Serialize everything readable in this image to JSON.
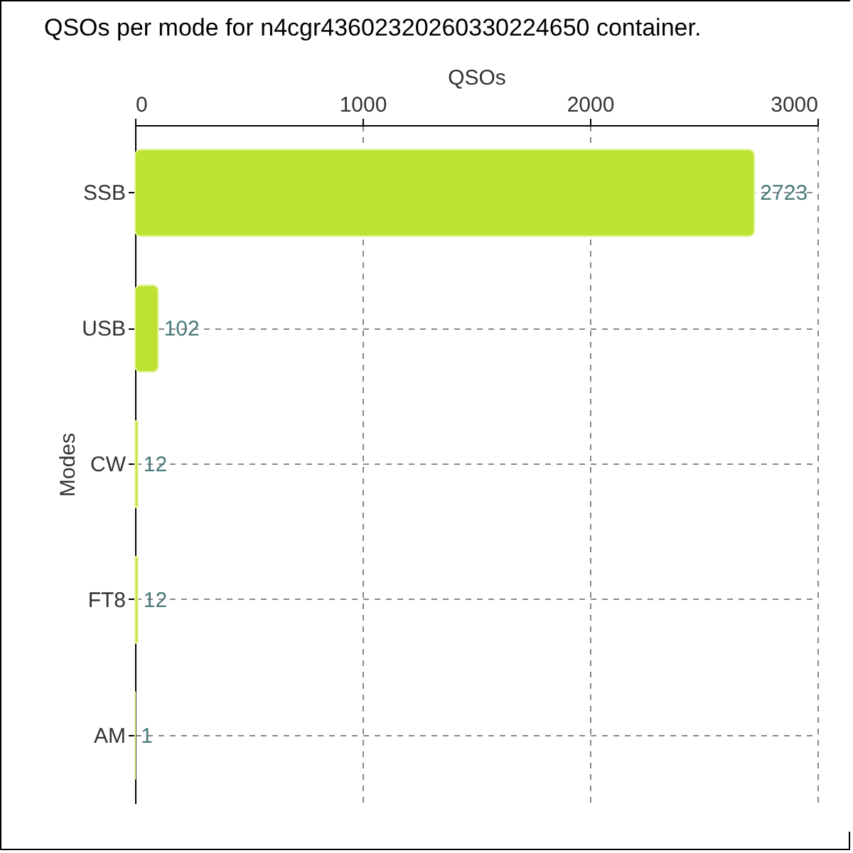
{
  "chart_data": {
    "type": "bar",
    "orientation": "horizontal",
    "title": "QSOs per mode for n4cgr43602320260330224650 container.",
    "xlabel": "QSOs",
    "ylabel": "Modes",
    "categories": [
      "SSB",
      "USB",
      "CW",
      "FT8",
      "AM"
    ],
    "values": [
      2723,
      102,
      12,
      12,
      1
    ],
    "color": "#bde232",
    "xlim": [
      0,
      3000
    ],
    "xticks": [
      0,
      1000,
      2000,
      3000
    ],
    "grid": true,
    "data_labels": true
  }
}
